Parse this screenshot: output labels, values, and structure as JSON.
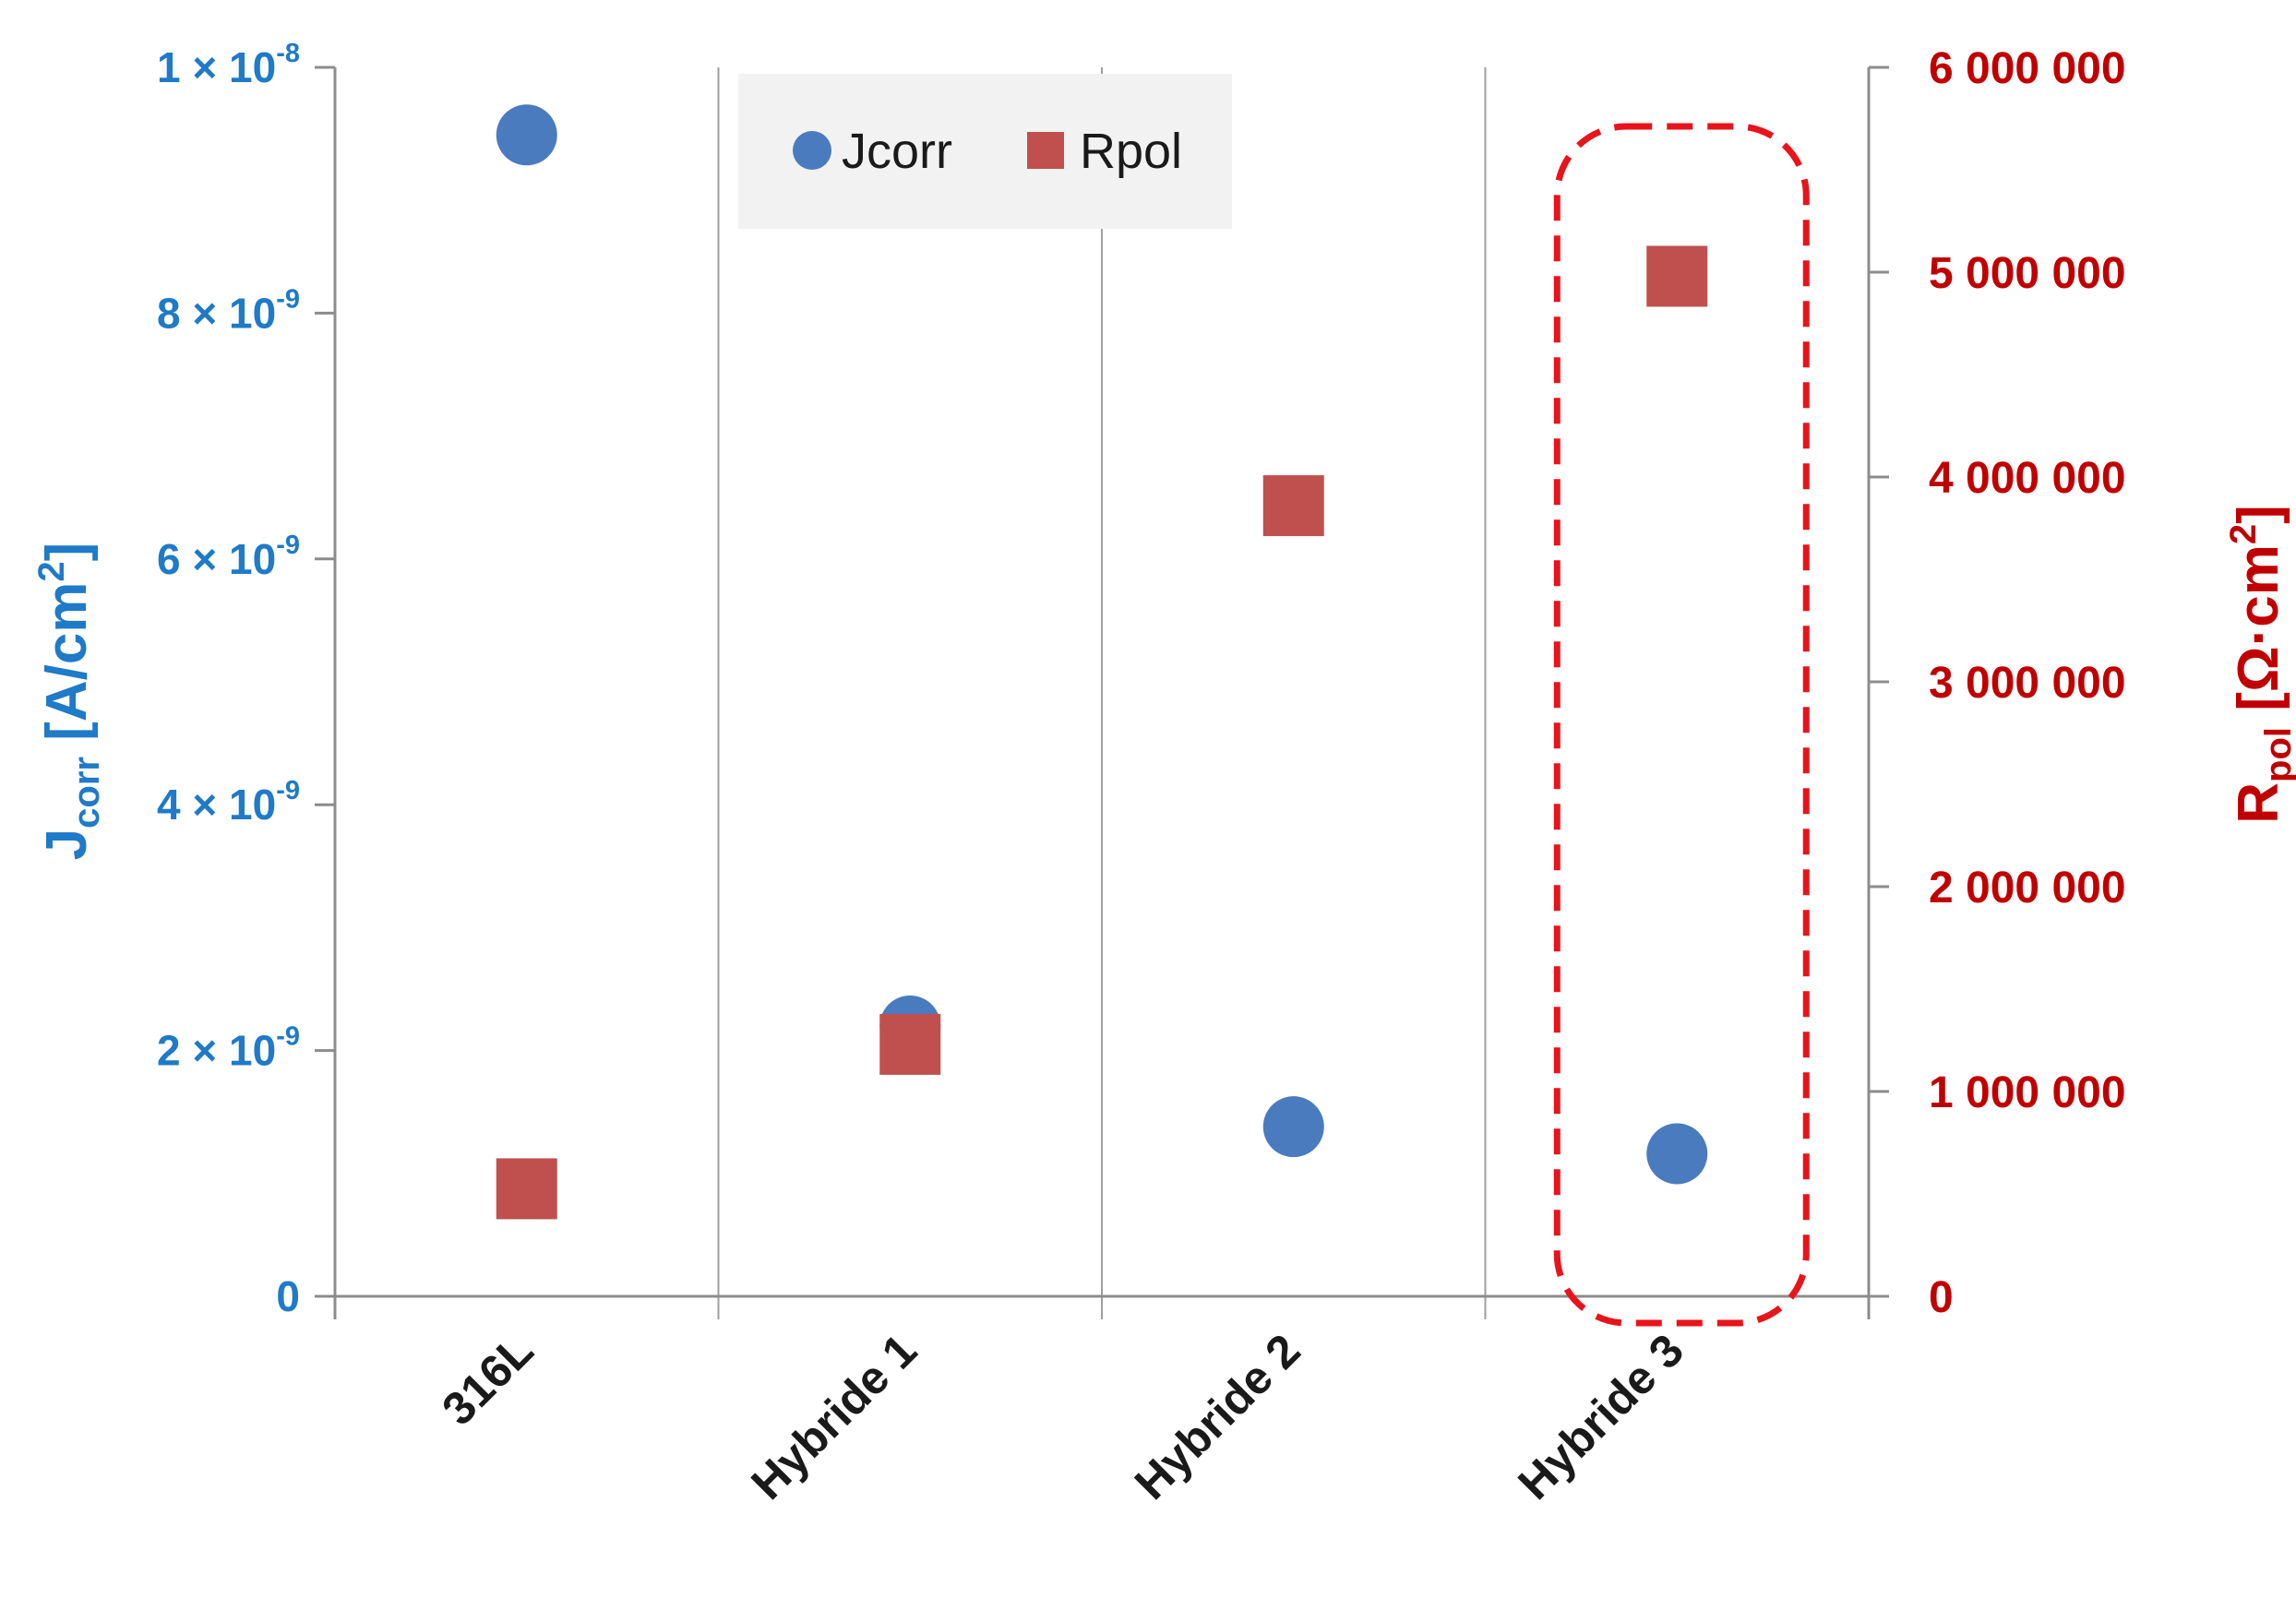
{
  "chart_data": {
    "type": "scatter",
    "categories": [
      "316L",
      "Hybride 1",
      "Hybride 2",
      "Hybride 3"
    ],
    "series": [
      {
        "name": "Jcorr",
        "axis": "left",
        "marker": "circle",
        "color": "#4a7bbf",
        "values": [
          9.45e-09,
          2.2e-09,
          1.38e-09,
          1.16e-09
        ]
      },
      {
        "name": "Rpol",
        "axis": "right",
        "marker": "square",
        "color": "#c0504d",
        "values": [
          525000,
          1230000,
          3860000,
          4980000
        ]
      }
    ],
    "y_left": {
      "label_main": "J",
      "label_sub": "corr",
      "label_unit_pre": " [A/cm",
      "label_unit_sup": "2",
      "label_unit_post": "]",
      "ylim": [
        0,
        1e-08
      ],
      "ticks": [
        {
          "mantissa": "0",
          "exp": ""
        },
        {
          "mantissa": "2 × 10",
          "exp": "-9"
        },
        {
          "mantissa": "4 × 10",
          "exp": "-9"
        },
        {
          "mantissa": "6 × 10",
          "exp": "-9"
        },
        {
          "mantissa": "8 × 10",
          "exp": "-9"
        },
        {
          "mantissa": "1 × 10",
          "exp": "-8"
        }
      ],
      "color": "#1f7ac8"
    },
    "y_right": {
      "label_main": "R",
      "label_sub": "pol",
      "label_unit_pre": " [Ω·cm",
      "label_unit_sup": "2",
      "label_unit_post": "]",
      "ylim": [
        0,
        6000000
      ],
      "ticks": [
        "0",
        "1 000 000",
        "2 000 000",
        "3 000 000",
        "4 000 000",
        "5 000 000",
        "6 000 000"
      ],
      "color": "#c00000"
    },
    "legend": {
      "placement": "top-center",
      "entries": [
        "Jcorr",
        "Rpol"
      ]
    },
    "grid": {
      "vertical_category_separators": true,
      "horizontal": false
    },
    "highlight": {
      "category": "Hybride 3",
      "style": "dashed-rounded-rectangle",
      "color": "#e8141b"
    }
  }
}
